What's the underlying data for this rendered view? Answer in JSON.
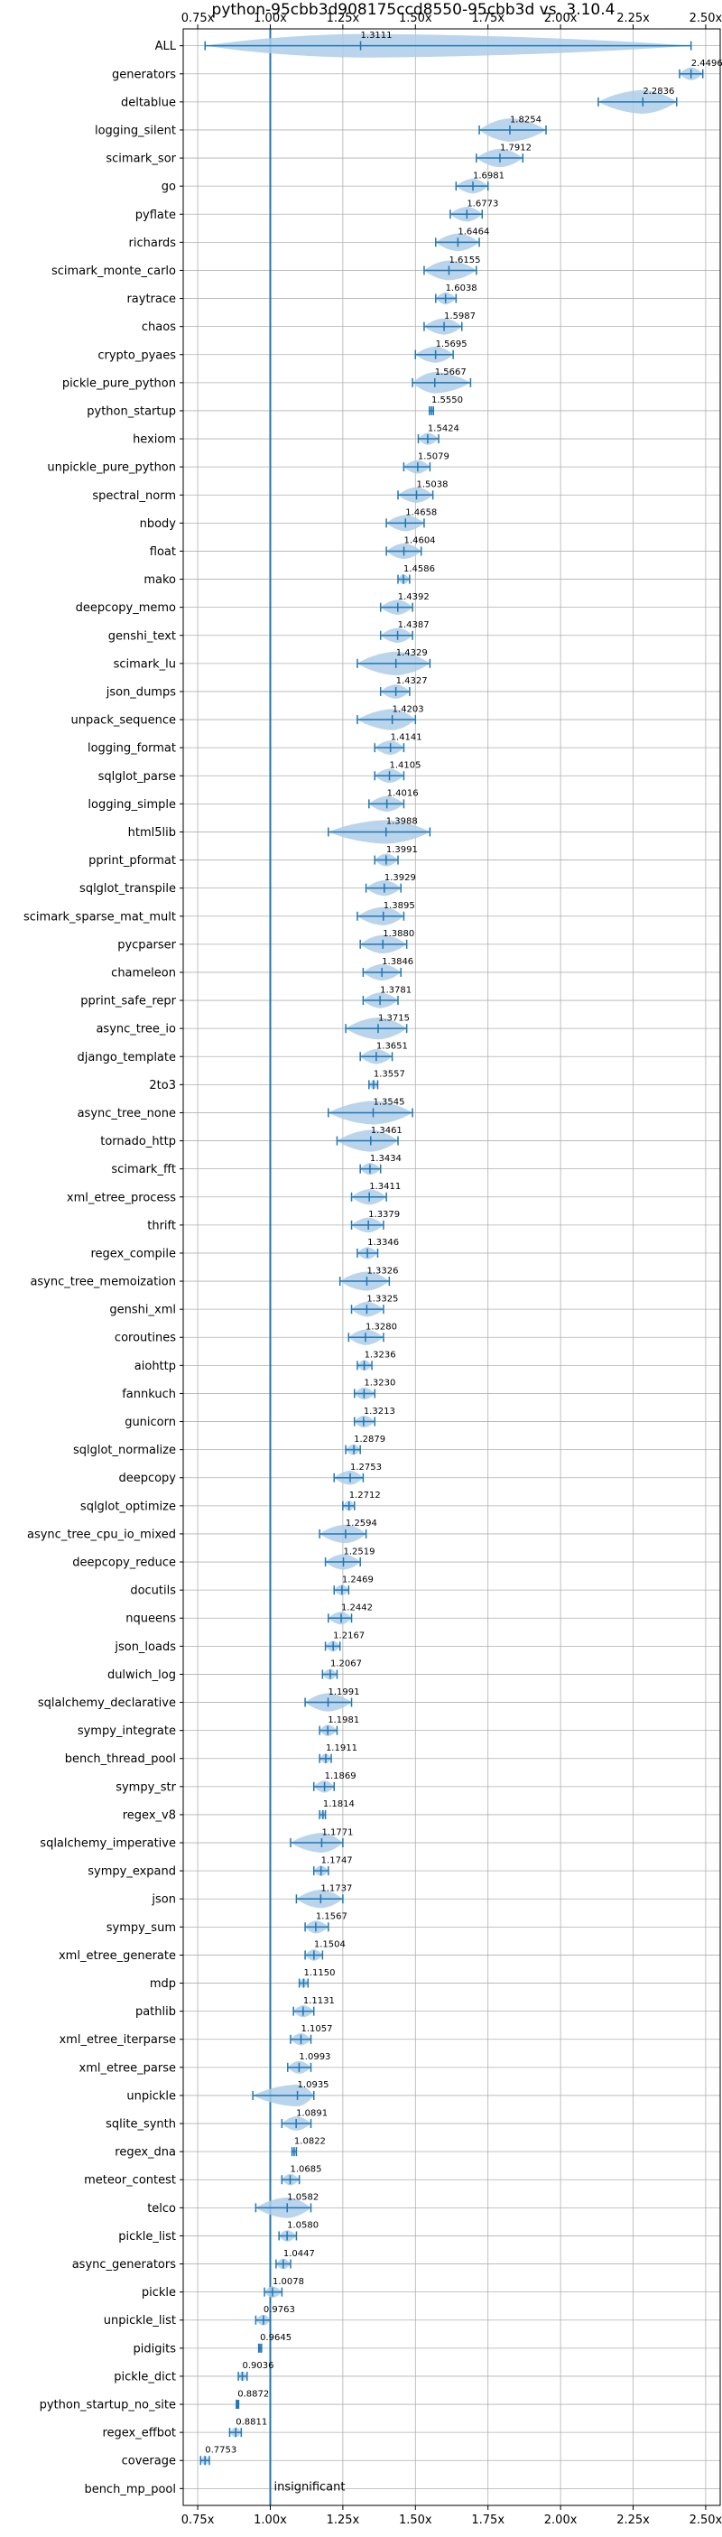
{
  "chart_data": {
    "type": "violin",
    "title": "python-95cbb3d908175ccd8550-95cbb3d vs. 3.10.4",
    "xlim": [
      0.7,
      2.55
    ],
    "x_ticks": [
      0.75,
      1.0,
      1.25,
      1.5,
      1.75,
      2.0,
      2.25,
      2.5
    ],
    "x_tick_labels": [
      "0.75x",
      "1.00x",
      "1.25x",
      "1.50x",
      "1.75x",
      "2.00x",
      "2.25x",
      "2.50x"
    ],
    "reference_line": 1.0,
    "grid": true,
    "annotation": "insignificant",
    "colors": {
      "violin": "#aecde8",
      "line": "#1f77b4",
      "grid": "#b0b0b0"
    },
    "benchmarks": [
      {
        "name": "ALL",
        "mean": 1.3111,
        "lo": 0.7753,
        "hi": 2.4496
      },
      {
        "name": "generators",
        "mean": 2.4496,
        "lo": 2.41,
        "hi": 2.49
      },
      {
        "name": "deltablue",
        "mean": 2.2836,
        "lo": 2.13,
        "hi": 2.4
      },
      {
        "name": "logging_silent",
        "mean": 1.8254,
        "lo": 1.72,
        "hi": 1.95
      },
      {
        "name": "scimark_sor",
        "mean": 1.7912,
        "lo": 1.71,
        "hi": 1.87
      },
      {
        "name": "go",
        "mean": 1.6981,
        "lo": 1.64,
        "hi": 1.75
      },
      {
        "name": "pyflate",
        "mean": 1.6773,
        "lo": 1.62,
        "hi": 1.73
      },
      {
        "name": "richards",
        "mean": 1.6464,
        "lo": 1.57,
        "hi": 1.72
      },
      {
        "name": "scimark_monte_carlo",
        "mean": 1.6155,
        "lo": 1.53,
        "hi": 1.71
      },
      {
        "name": "raytrace",
        "mean": 1.6038,
        "lo": 1.57,
        "hi": 1.64
      },
      {
        "name": "chaos",
        "mean": 1.5987,
        "lo": 1.53,
        "hi": 1.66
      },
      {
        "name": "crypto_pyaes",
        "mean": 1.5695,
        "lo": 1.5,
        "hi": 1.63
      },
      {
        "name": "pickle_pure_python",
        "mean": 1.5667,
        "lo": 1.49,
        "hi": 1.69
      },
      {
        "name": "python_startup",
        "mean": 1.555,
        "lo": 1.548,
        "hi": 1.562
      },
      {
        "name": "hexiom",
        "mean": 1.5424,
        "lo": 1.51,
        "hi": 1.58
      },
      {
        "name": "unpickle_pure_python",
        "mean": 1.5079,
        "lo": 1.46,
        "hi": 1.55
      },
      {
        "name": "spectral_norm",
        "mean": 1.5038,
        "lo": 1.44,
        "hi": 1.56
      },
      {
        "name": "nbody",
        "mean": 1.4658,
        "lo": 1.4,
        "hi": 1.53
      },
      {
        "name": "float",
        "mean": 1.4604,
        "lo": 1.4,
        "hi": 1.52
      },
      {
        "name": "mako",
        "mean": 1.4586,
        "lo": 1.44,
        "hi": 1.48
      },
      {
        "name": "deepcopy_memo",
        "mean": 1.4392,
        "lo": 1.38,
        "hi": 1.49
      },
      {
        "name": "genshi_text",
        "mean": 1.4387,
        "lo": 1.38,
        "hi": 1.49
      },
      {
        "name": "scimark_lu",
        "mean": 1.4329,
        "lo": 1.3,
        "hi": 1.55
      },
      {
        "name": "json_dumps",
        "mean": 1.4327,
        "lo": 1.38,
        "hi": 1.48
      },
      {
        "name": "unpack_sequence",
        "mean": 1.4203,
        "lo": 1.3,
        "hi": 1.5
      },
      {
        "name": "logging_format",
        "mean": 1.4141,
        "lo": 1.36,
        "hi": 1.46
      },
      {
        "name": "sqlglot_parse",
        "mean": 1.4105,
        "lo": 1.36,
        "hi": 1.46
      },
      {
        "name": "logging_simple",
        "mean": 1.4016,
        "lo": 1.34,
        "hi": 1.46
      },
      {
        "name": "html5lib",
        "mean": 1.3988,
        "lo": 1.2,
        "hi": 1.55
      },
      {
        "name": "pprint_pformat",
        "mean": 1.3991,
        "lo": 1.36,
        "hi": 1.44
      },
      {
        "name": "sqlglot_transpile",
        "mean": 1.3929,
        "lo": 1.33,
        "hi": 1.45
      },
      {
        "name": "scimark_sparse_mat_mult",
        "mean": 1.3895,
        "lo": 1.3,
        "hi": 1.46
      },
      {
        "name": "pycparser",
        "mean": 1.388,
        "lo": 1.31,
        "hi": 1.47
      },
      {
        "name": "chameleon",
        "mean": 1.3846,
        "lo": 1.32,
        "hi": 1.45
      },
      {
        "name": "pprint_safe_repr",
        "mean": 1.3781,
        "lo": 1.32,
        "hi": 1.44
      },
      {
        "name": "async_tree_io",
        "mean": 1.3715,
        "lo": 1.26,
        "hi": 1.47
      },
      {
        "name": "django_template",
        "mean": 1.3651,
        "lo": 1.31,
        "hi": 1.42
      },
      {
        "name": "2to3",
        "mean": 1.3557,
        "lo": 1.34,
        "hi": 1.37
      },
      {
        "name": "async_tree_none",
        "mean": 1.3545,
        "lo": 1.2,
        "hi": 1.49
      },
      {
        "name": "tornado_http",
        "mean": 1.3461,
        "lo": 1.23,
        "hi": 1.44
      },
      {
        "name": "scimark_fft",
        "mean": 1.3434,
        "lo": 1.31,
        "hi": 1.38
      },
      {
        "name": "xml_etree_process",
        "mean": 1.3411,
        "lo": 1.28,
        "hi": 1.4
      },
      {
        "name": "thrift",
        "mean": 1.3379,
        "lo": 1.28,
        "hi": 1.39
      },
      {
        "name": "regex_compile",
        "mean": 1.3346,
        "lo": 1.3,
        "hi": 1.37
      },
      {
        "name": "async_tree_memoization",
        "mean": 1.3326,
        "lo": 1.24,
        "hi": 1.41
      },
      {
        "name": "genshi_xml",
        "mean": 1.3325,
        "lo": 1.28,
        "hi": 1.39
      },
      {
        "name": "coroutines",
        "mean": 1.328,
        "lo": 1.27,
        "hi": 1.39
      },
      {
        "name": "aiohttp",
        "mean": 1.3236,
        "lo": 1.3,
        "hi": 1.35
      },
      {
        "name": "fannkuch",
        "mean": 1.323,
        "lo": 1.29,
        "hi": 1.36
      },
      {
        "name": "gunicorn",
        "mean": 1.3213,
        "lo": 1.29,
        "hi": 1.36
      },
      {
        "name": "sqlglot_normalize",
        "mean": 1.2879,
        "lo": 1.26,
        "hi": 1.31
      },
      {
        "name": "deepcopy",
        "mean": 1.2753,
        "lo": 1.22,
        "hi": 1.32
      },
      {
        "name": "sqlglot_optimize",
        "mean": 1.2712,
        "lo": 1.25,
        "hi": 1.29
      },
      {
        "name": "async_tree_cpu_io_mixed",
        "mean": 1.2594,
        "lo": 1.17,
        "hi": 1.33
      },
      {
        "name": "deepcopy_reduce",
        "mean": 1.2519,
        "lo": 1.19,
        "hi": 1.31
      },
      {
        "name": "docutils",
        "mean": 1.2469,
        "lo": 1.22,
        "hi": 1.27
      },
      {
        "name": "nqueens",
        "mean": 1.2442,
        "lo": 1.2,
        "hi": 1.28
      },
      {
        "name": "json_loads",
        "mean": 1.2167,
        "lo": 1.19,
        "hi": 1.24
      },
      {
        "name": "dulwich_log",
        "mean": 1.2067,
        "lo": 1.18,
        "hi": 1.23
      },
      {
        "name": "sqlalchemy_declarative",
        "mean": 1.1991,
        "lo": 1.12,
        "hi": 1.28
      },
      {
        "name": "sympy_integrate",
        "mean": 1.1981,
        "lo": 1.17,
        "hi": 1.23
      },
      {
        "name": "bench_thread_pool",
        "mean": 1.1911,
        "lo": 1.17,
        "hi": 1.21
      },
      {
        "name": "sympy_str",
        "mean": 1.1869,
        "lo": 1.15,
        "hi": 1.22
      },
      {
        "name": "regex_v8",
        "mean": 1.1814,
        "lo": 1.17,
        "hi": 1.19
      },
      {
        "name": "sqlalchemy_imperative",
        "mean": 1.1771,
        "lo": 1.07,
        "hi": 1.25
      },
      {
        "name": "sympy_expand",
        "mean": 1.1747,
        "lo": 1.15,
        "hi": 1.2
      },
      {
        "name": "json",
        "mean": 1.1737,
        "lo": 1.09,
        "hi": 1.25
      },
      {
        "name": "sympy_sum",
        "mean": 1.1567,
        "lo": 1.12,
        "hi": 1.2
      },
      {
        "name": "xml_etree_generate",
        "mean": 1.1504,
        "lo": 1.12,
        "hi": 1.18
      },
      {
        "name": "mdp",
        "mean": 1.115,
        "lo": 1.1,
        "hi": 1.13
      },
      {
        "name": "pathlib",
        "mean": 1.1131,
        "lo": 1.08,
        "hi": 1.15
      },
      {
        "name": "xml_etree_iterparse",
        "mean": 1.1057,
        "lo": 1.07,
        "hi": 1.14
      },
      {
        "name": "xml_etree_parse",
        "mean": 1.0993,
        "lo": 1.06,
        "hi": 1.14
      },
      {
        "name": "unpickle",
        "mean": 1.0935,
        "lo": 0.94,
        "hi": 1.15
      },
      {
        "name": "sqlite_synth",
        "mean": 1.0891,
        "lo": 1.04,
        "hi": 1.14
      },
      {
        "name": "regex_dna",
        "mean": 1.0822,
        "lo": 1.075,
        "hi": 1.09
      },
      {
        "name": "meteor_contest",
        "mean": 1.0685,
        "lo": 1.04,
        "hi": 1.1
      },
      {
        "name": "telco",
        "mean": 1.0582,
        "lo": 0.95,
        "hi": 1.14
      },
      {
        "name": "pickle_list",
        "mean": 1.058,
        "lo": 1.03,
        "hi": 1.09
      },
      {
        "name": "async_generators",
        "mean": 1.0447,
        "lo": 1.02,
        "hi": 1.07
      },
      {
        "name": "pickle",
        "mean": 1.0078,
        "lo": 0.98,
        "hi": 1.04
      },
      {
        "name": "unpickle_list",
        "mean": 0.9763,
        "lo": 0.95,
        "hi": 1.0
      },
      {
        "name": "pidigits",
        "mean": 0.9645,
        "lo": 0.96,
        "hi": 0.97
      },
      {
        "name": "pickle_dict",
        "mean": 0.9036,
        "lo": 0.89,
        "hi": 0.92
      },
      {
        "name": "python_startup_no_site",
        "mean": 0.8872,
        "lo": 0.883,
        "hi": 0.891
      },
      {
        "name": "regex_effbot",
        "mean": 0.8811,
        "lo": 0.86,
        "hi": 0.9
      },
      {
        "name": "coverage",
        "mean": 0.7753,
        "lo": 0.76,
        "hi": 0.79
      },
      {
        "name": "bench_mp_pool",
        "mean": null,
        "lo": null,
        "hi": null,
        "label": "insignificant"
      }
    ]
  }
}
